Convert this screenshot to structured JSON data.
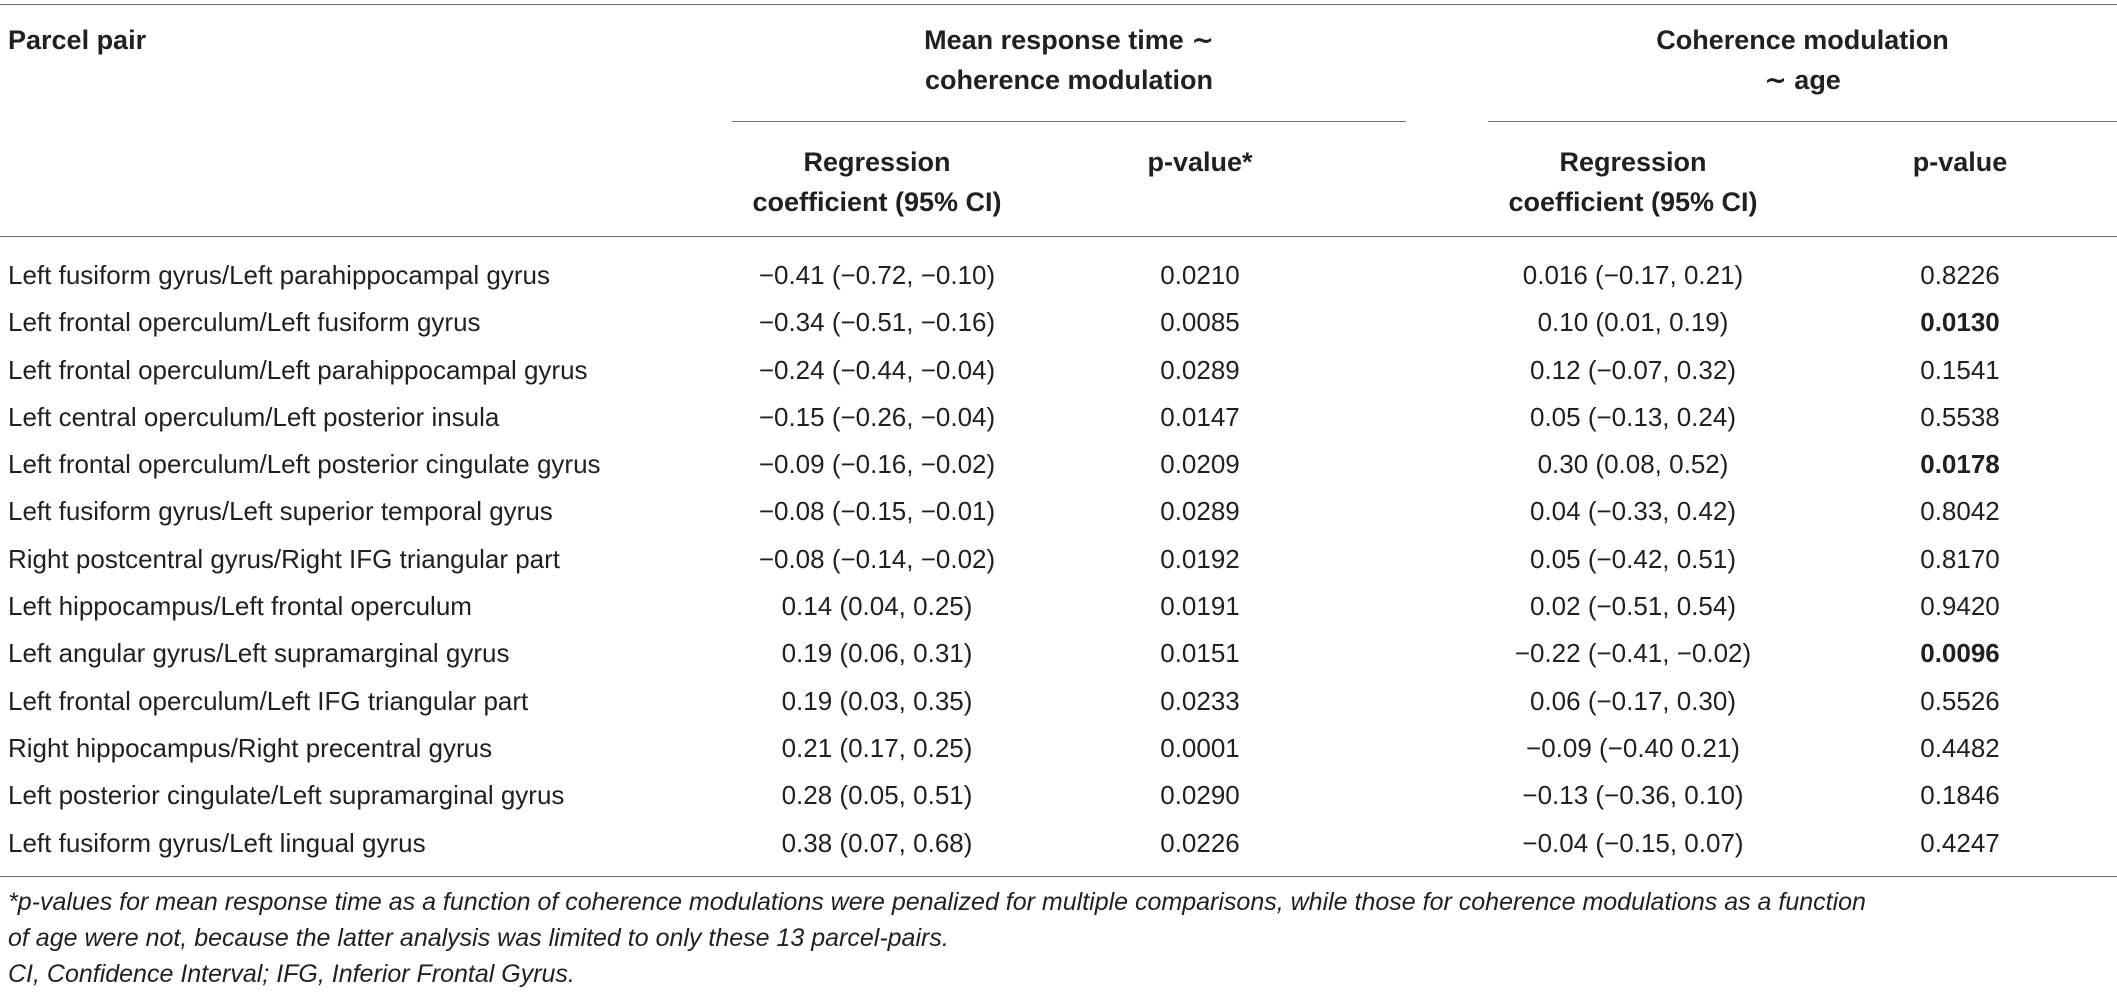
{
  "table": {
    "headers": {
      "parcel_pair": "Parcel pair",
      "group1_line1": "Mean response time ∼",
      "group1_line2": "coherence modulation",
      "group2_line1": "Coherence modulation",
      "group2_line2": "∼ age",
      "coef_line1": "Regression",
      "coef_line2": "coefficient (95% CI)",
      "pvalue_star": "p-value*",
      "pvalue": "p-value"
    },
    "rows": [
      {
        "pair": "Left fusiform gyrus/Left parahippocampal gyrus",
        "coef_rt": "−0.41 (−0.72, −0.10)",
        "p_rt": "0.0210",
        "coef_age": "0.016 (−0.17, 0.21)",
        "p_age": "0.8226",
        "p_age_bold": false
      },
      {
        "pair": "Left frontal operculum/Left fusiform gyrus",
        "coef_rt": "−0.34 (−0.51, −0.16)",
        "p_rt": "0.0085",
        "coef_age": "0.10 (0.01, 0.19)",
        "p_age": "0.0130",
        "p_age_bold": true
      },
      {
        "pair": "Left frontal operculum/Left parahippocampal gyrus",
        "coef_rt": "−0.24 (−0.44, −0.04)",
        "p_rt": "0.0289",
        "coef_age": "0.12 (−0.07, 0.32)",
        "p_age": "0.1541",
        "p_age_bold": false
      },
      {
        "pair": "Left central operculum/Left posterior insula",
        "coef_rt": "−0.15 (−0.26, −0.04)",
        "p_rt": "0.0147",
        "coef_age": "0.05 (−0.13, 0.24)",
        "p_age": "0.5538",
        "p_age_bold": false
      },
      {
        "pair": "Left frontal operculum/Left posterior cingulate gyrus",
        "coef_rt": "−0.09 (−0.16, −0.02)",
        "p_rt": "0.0209",
        "coef_age": "0.30 (0.08, 0.52)",
        "p_age": "0.0178",
        "p_age_bold": true
      },
      {
        "pair": "Left fusiform gyrus/Left superior temporal gyrus",
        "coef_rt": "−0.08 (−0.15, −0.01)",
        "p_rt": "0.0289",
        "coef_age": "0.04 (−0.33, 0.42)",
        "p_age": "0.8042",
        "p_age_bold": false
      },
      {
        "pair": "Right postcentral gyrus/Right IFG triangular part",
        "coef_rt": "−0.08 (−0.14, −0.02)",
        "p_rt": "0.0192",
        "coef_age": "0.05 (−0.42, 0.51)",
        "p_age": "0.8170",
        "p_age_bold": false
      },
      {
        "pair": "Left hippocampus/Left frontal operculum",
        "coef_rt": "0.14 (0.04, 0.25)",
        "p_rt": "0.0191",
        "coef_age": "0.02 (−0.51, 0.54)",
        "p_age": "0.9420",
        "p_age_bold": false
      },
      {
        "pair": "Left angular gyrus/Left supramarginal gyrus",
        "coef_rt": "0.19 (0.06, 0.31)",
        "p_rt": "0.0151",
        "coef_age": "−0.22 (−0.41, −0.02)",
        "p_age": "0.0096",
        "p_age_bold": true
      },
      {
        "pair": "Left frontal operculum/Left IFG triangular part",
        "coef_rt": "0.19 (0.03, 0.35)",
        "p_rt": "0.0233",
        "coef_age": "0.06 (−0.17, 0.30)",
        "p_age": "0.5526",
        "p_age_bold": false
      },
      {
        "pair": "Right hippocampus/Right precentral gyrus",
        "coef_rt": "0.21 (0.17, 0.25)",
        "p_rt": "0.0001",
        "coef_age": "−0.09 (−0.40 0.21)",
        "p_age": "0.4482",
        "p_age_bold": false
      },
      {
        "pair": "Left posterior cingulate/Left supramarginal gyrus",
        "coef_rt": "0.28 (0.05, 0.51)",
        "p_rt": "0.0290",
        "coef_age": "−0.13 (−0.36, 0.10)",
        "p_age": "0.1846",
        "p_age_bold": false
      },
      {
        "pair": "Left fusiform gyrus/Left lingual gyrus",
        "coef_rt": "0.38 (0.07, 0.68)",
        "p_rt": "0.0226",
        "coef_age": "−0.04 (−0.15, 0.07)",
        "p_age": "0.4247",
        "p_age_bold": false
      }
    ]
  },
  "footnotes": {
    "line1": "*p-values for mean response time as a function of coherence modulations were penalized for multiple comparisons, while those for coherence modulations as a function",
    "line2": "of age were not, because the latter analysis was limited to only these 13 parcel-pairs.",
    "line3": "CI, Confidence Interval; IFG, Inferior Frontal Gyrus."
  },
  "colors": {
    "text": "#231f20",
    "rule": "#6d6e71",
    "background": "#ffffff"
  }
}
